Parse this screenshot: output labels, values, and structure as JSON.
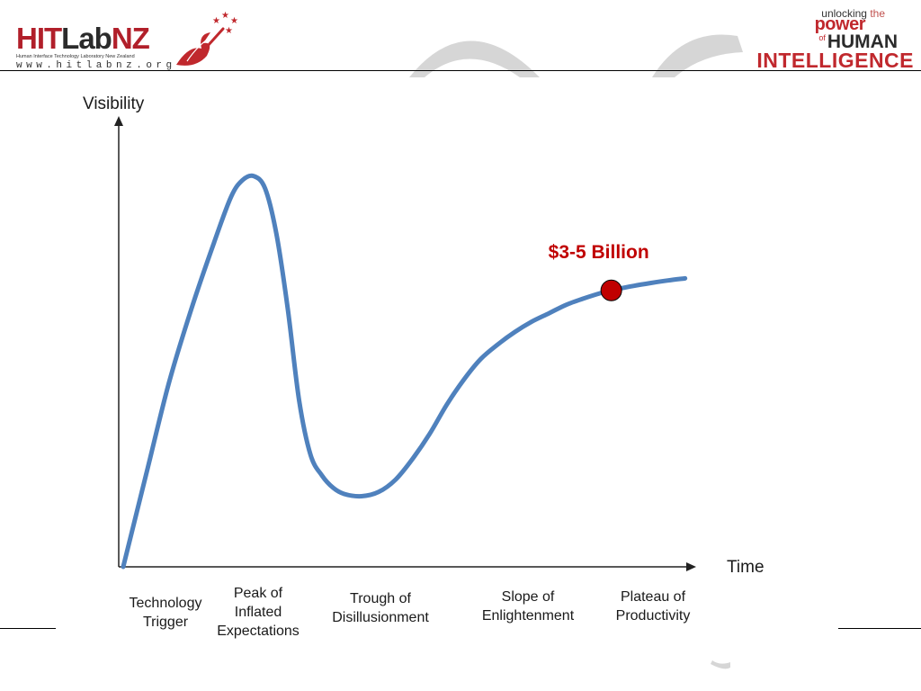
{
  "header": {
    "logo_left": {
      "hit": "HIT",
      "lab": "Lab",
      "nz": "NZ",
      "subtitle": "Human Interface Technology Laboratory New Zealand",
      "website": "www.hitlabnz.org"
    },
    "logo_right": {
      "unlocking": "unlocking",
      "the": "the",
      "power": "power",
      "of": "of",
      "human": "HUMAN",
      "intelligence": "INTELLIGENCE"
    },
    "colors": {
      "brand_red": "#c0282d",
      "dark": "#2b2b2b"
    }
  },
  "chart_data": {
    "type": "line",
    "title": "",
    "ylabel": "Visibility",
    "xlabel": "Time",
    "xlim": [
      0,
      100
    ],
    "ylim": [
      0,
      100
    ],
    "x": [
      0,
      4,
      8,
      12,
      16,
      19,
      21,
      23,
      25,
      27,
      29,
      31,
      33,
      35,
      37,
      39,
      42,
      45,
      48,
      51,
      54,
      57,
      60,
      63,
      66,
      69,
      72,
      75,
      78,
      81,
      84,
      87,
      90,
      93,
      96,
      99
    ],
    "series": [
      {
        "name": "",
        "color": "#4f81bd",
        "values": [
          0,
          22,
          44,
          62,
          78,
          89,
          93,
          94,
          91,
          80,
          62,
          40,
          27,
          22,
          19,
          17.5,
          17,
          18,
          21,
          26,
          32,
          39,
          45,
          50,
          53.5,
          56.5,
          59,
          61,
          63,
          64.5,
          65.8,
          66.8,
          67.6,
          68.3,
          68.9,
          69.4
        ]
      }
    ],
    "phases": [
      [
        "Technology",
        "Trigger"
      ],
      [
        "Peak of",
        "Inflated",
        "Expectations"
      ],
      [
        "Trough of",
        "Disillusionment"
      ],
      [
        "Slope of",
        "Enlightenment"
      ],
      [
        "Plateau of",
        "Productivity"
      ]
    ],
    "marker": {
      "x": 86,
      "y": 66.5,
      "label": "$3-5 Billion",
      "color": "#c00000"
    },
    "grid": false,
    "legend": "none"
  }
}
